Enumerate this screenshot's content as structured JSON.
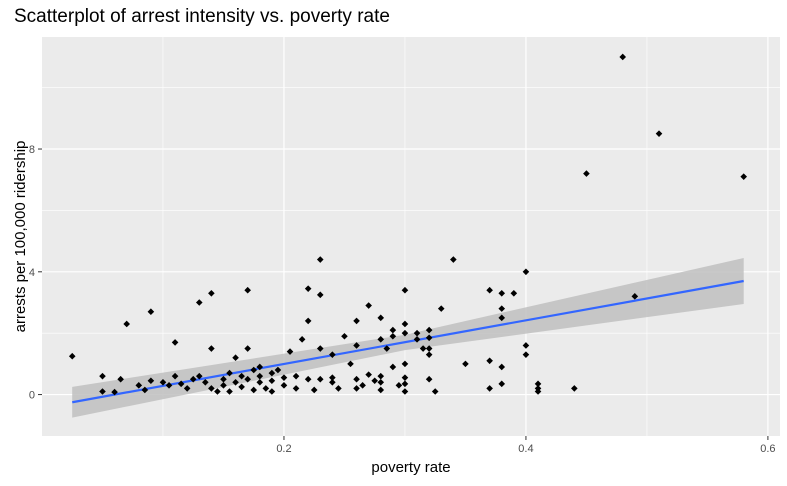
{
  "chart_data": {
    "type": "scatter",
    "title": "Scatterplot of arrest intensity vs. poverty rate",
    "xlabel": "poverty rate",
    "ylabel": "arrests per 100,000 ridership",
    "xlim": [
      0.0,
      0.61
    ],
    "ylim": [
      -1.35,
      11.65
    ],
    "x_ticks": [
      0.2,
      0.4,
      0.6
    ],
    "y_ticks": [
      0,
      4,
      8
    ],
    "x_tick_labels": [
      "0.2",
      "0.4",
      "0.6"
    ],
    "y_tick_labels": [
      "0",
      "4",
      "8"
    ],
    "grid": true,
    "points": [
      [
        0.025,
        1.25
      ],
      [
        0.05,
        0.6
      ],
      [
        0.05,
        0.1
      ],
      [
        0.06,
        0.08
      ],
      [
        0.065,
        0.5
      ],
      [
        0.07,
        2.3
      ],
      [
        0.08,
        0.3
      ],
      [
        0.085,
        0.15
      ],
      [
        0.09,
        2.7
      ],
      [
        0.09,
        0.45
      ],
      [
        0.1,
        0.4
      ],
      [
        0.105,
        0.3
      ],
      [
        0.11,
        1.7
      ],
      [
        0.11,
        0.6
      ],
      [
        0.115,
        0.35
      ],
      [
        0.12,
        0.2
      ],
      [
        0.125,
        0.5
      ],
      [
        0.13,
        0.6
      ],
      [
        0.13,
        3.0
      ],
      [
        0.135,
        0.4
      ],
      [
        0.14,
        3.3
      ],
      [
        0.14,
        1.5
      ],
      [
        0.14,
        0.2
      ],
      [
        0.145,
        0.1
      ],
      [
        0.15,
        0.5
      ],
      [
        0.15,
        0.3
      ],
      [
        0.155,
        0.7
      ],
      [
        0.155,
        0.1
      ],
      [
        0.16,
        1.2
      ],
      [
        0.16,
        0.4
      ],
      [
        0.165,
        0.6
      ],
      [
        0.165,
        0.25
      ],
      [
        0.17,
        1.5
      ],
      [
        0.17,
        0.5
      ],
      [
        0.17,
        3.4
      ],
      [
        0.175,
        0.8
      ],
      [
        0.175,
        0.15
      ],
      [
        0.18,
        0.9
      ],
      [
        0.18,
        0.6
      ],
      [
        0.18,
        0.4
      ],
      [
        0.185,
        0.2
      ],
      [
        0.19,
        0.7
      ],
      [
        0.19,
        0.45
      ],
      [
        0.19,
        0.1
      ],
      [
        0.195,
        0.8
      ],
      [
        0.2,
        0.55
      ],
      [
        0.2,
        0.3
      ],
      [
        0.205,
        1.4
      ],
      [
        0.21,
        0.6
      ],
      [
        0.21,
        0.2
      ],
      [
        0.215,
        1.8
      ],
      [
        0.22,
        2.4
      ],
      [
        0.22,
        3.45
      ],
      [
        0.22,
        0.5
      ],
      [
        0.225,
        0.15
      ],
      [
        0.23,
        4.4
      ],
      [
        0.23,
        3.25
      ],
      [
        0.23,
        1.5
      ],
      [
        0.23,
        0.5
      ],
      [
        0.24,
        1.3
      ],
      [
        0.24,
        0.55
      ],
      [
        0.24,
        0.4
      ],
      [
        0.245,
        0.2
      ],
      [
        0.25,
        1.9
      ],
      [
        0.255,
        1.0
      ],
      [
        0.26,
        2.4
      ],
      [
        0.26,
        1.6
      ],
      [
        0.26,
        0.5
      ],
      [
        0.26,
        0.2
      ],
      [
        0.265,
        0.3
      ],
      [
        0.27,
        2.9
      ],
      [
        0.27,
        0.65
      ],
      [
        0.275,
        0.45
      ],
      [
        0.28,
        1.8
      ],
      [
        0.28,
        2.5
      ],
      [
        0.28,
        0.6
      ],
      [
        0.28,
        0.4
      ],
      [
        0.28,
        0.15
      ],
      [
        0.285,
        1.5
      ],
      [
        0.29,
        2.1
      ],
      [
        0.29,
        1.9
      ],
      [
        0.29,
        0.9
      ],
      [
        0.295,
        0.3
      ],
      [
        0.3,
        3.4
      ],
      [
        0.3,
        2.3
      ],
      [
        0.3,
        2.0
      ],
      [
        0.3,
        1.0
      ],
      [
        0.3,
        0.55
      ],
      [
        0.3,
        0.35
      ],
      [
        0.3,
        0.1
      ],
      [
        0.31,
        2.0
      ],
      [
        0.31,
        1.8
      ],
      [
        0.315,
        1.5
      ],
      [
        0.32,
        2.1
      ],
      [
        0.32,
        1.85
      ],
      [
        0.32,
        1.5
      ],
      [
        0.32,
        1.3
      ],
      [
        0.32,
        0.5
      ],
      [
        0.325,
        0.1
      ],
      [
        0.33,
        2.8
      ],
      [
        0.34,
        4.4
      ],
      [
        0.35,
        1.0
      ],
      [
        0.37,
        3.4
      ],
      [
        0.37,
        1.1
      ],
      [
        0.37,
        0.2
      ],
      [
        0.38,
        3.3
      ],
      [
        0.38,
        2.8
      ],
      [
        0.38,
        2.5
      ],
      [
        0.38,
        0.9
      ],
      [
        0.38,
        0.35
      ],
      [
        0.39,
        3.3
      ],
      [
        0.4,
        4.0
      ],
      [
        0.4,
        1.6
      ],
      [
        0.4,
        1.3
      ],
      [
        0.41,
        0.35
      ],
      [
        0.41,
        0.2
      ],
      [
        0.41,
        0.1
      ],
      [
        0.44,
        0.2
      ],
      [
        0.45,
        7.2
      ],
      [
        0.48,
        11.0
      ],
      [
        0.49,
        3.2
      ],
      [
        0.51,
        8.5
      ],
      [
        0.58,
        7.1
      ]
    ],
    "trend_line": {
      "method": "linear fit with confidence band",
      "x": [
        0.025,
        0.58
      ],
      "y": [
        -0.25,
        3.7
      ]
    },
    "confidence_band": {
      "x": [
        0.025,
        0.3,
        0.58
      ],
      "lower": [
        -0.75,
        1.45,
        2.95
      ],
      "upper": [
        0.25,
        1.95,
        4.45
      ]
    },
    "colors": {
      "panel": "#ebebeb",
      "grid_major": "#ffffff",
      "points": "#000000",
      "trend": "#3366ff",
      "band": "#bfbfbf"
    }
  }
}
